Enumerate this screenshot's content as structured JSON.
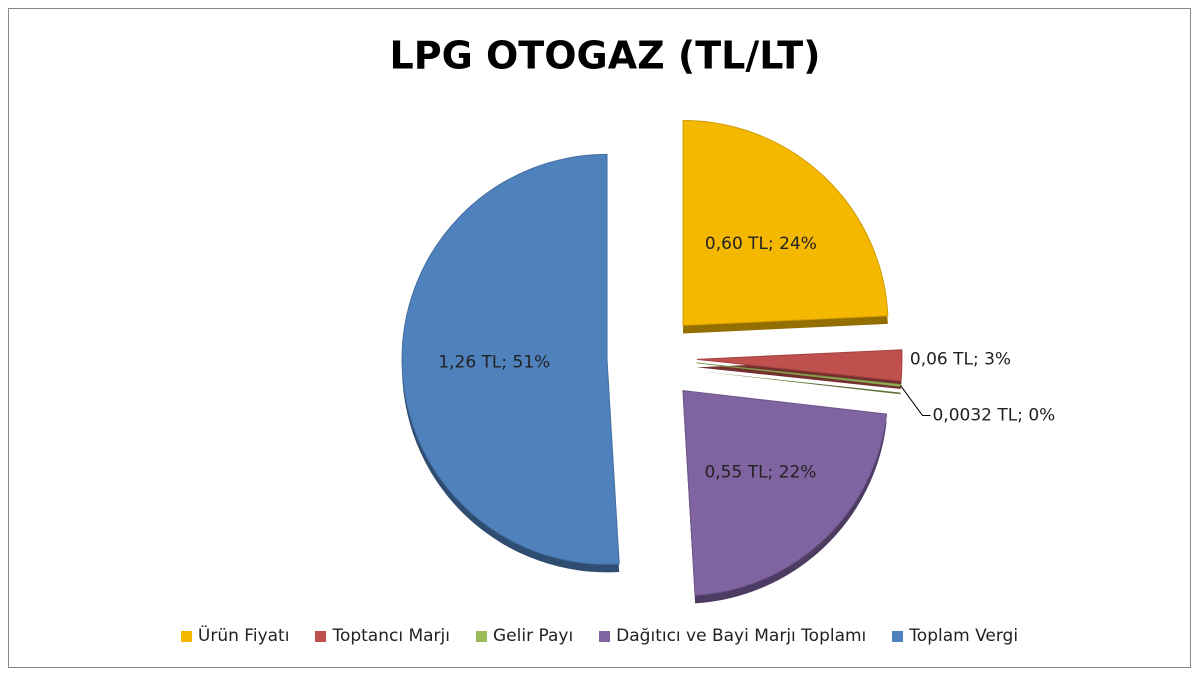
{
  "chart_data": {
    "type": "pie",
    "title": "LPG OTOGAZ (TL/LT)",
    "categories": [
      "Ürün Fiyatı",
      "Toptancı Marjı",
      "Gelir Payı",
      "Dağıtıcı ve Bayi Marjı Toplamı",
      "Toplam Vergi"
    ],
    "values": [
      0.6,
      0.06,
      0.0032,
      0.55,
      1.26
    ],
    "value_labels": [
      "0,60 TL; 24%",
      "0,06 TL; 3%",
      "0,0032 TL; 0%",
      "0,55 TL; 22%",
      "1,26 TL; 51%"
    ],
    "colors": [
      "#f5b800",
      "#c0504d",
      "#9bbb59",
      "#8064a2",
      "#4f81bd"
    ],
    "legend": "bottom"
  }
}
